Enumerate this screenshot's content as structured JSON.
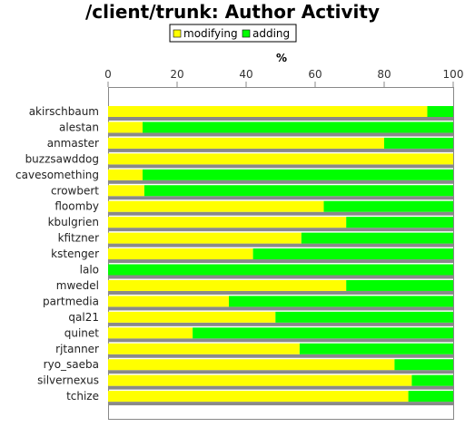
{
  "chart_data": {
    "type": "bar",
    "orientation": "horizontal",
    "stacked": true,
    "title": "/client/trunk: Author Activity",
    "xlabel": "%",
    "xlim": [
      0,
      100
    ],
    "xticks": [
      0,
      20,
      40,
      60,
      80,
      100
    ],
    "legend_position": "top-center",
    "categories": [
      "akirschbaum",
      "alestan",
      "anmaster",
      "buzzsawddog",
      "cavesomething",
      "crowbert",
      "floomby",
      "kbulgrien",
      "kfitzner",
      "kstenger",
      "lalo",
      "mwedel",
      "partmedia",
      "qal21",
      "quinet",
      "rjtanner",
      "ryo_saeba",
      "silvernexus",
      "tchize"
    ],
    "series": [
      {
        "name": "modifying",
        "color": "#ffff00",
        "values": [
          92.5,
          10,
          80,
          100,
          10,
          10.5,
          62.5,
          69,
          56,
          42,
          0,
          69,
          35,
          48.5,
          24.5,
          55.5,
          83,
          88,
          87
        ]
      },
      {
        "name": "adding",
        "color": "#00ff00",
        "values": [
          7.5,
          90,
          20,
          0,
          90,
          89.5,
          37.5,
          31,
          44,
          58,
          100,
          31,
          65,
          51.5,
          75.5,
          44.5,
          17,
          12,
          13
        ]
      }
    ]
  }
}
